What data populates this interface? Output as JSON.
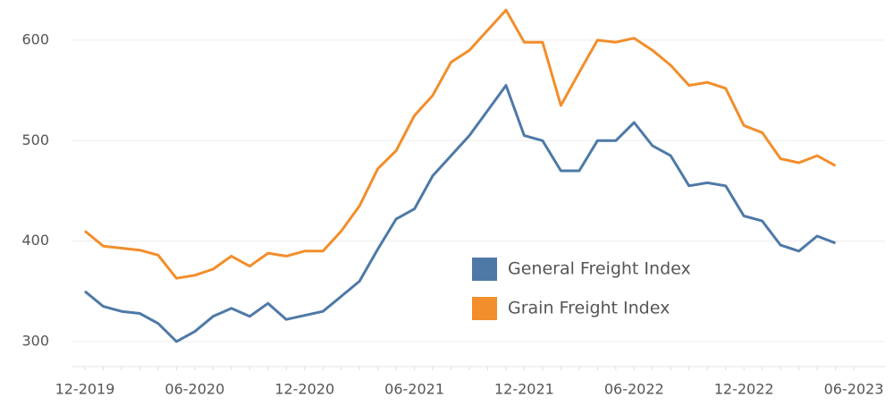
{
  "chart_data": {
    "type": "line",
    "x": [
      "12-2019",
      null,
      null,
      null,
      null,
      null,
      "06-2020",
      null,
      null,
      null,
      null,
      null,
      "12-2020",
      null,
      null,
      null,
      null,
      null,
      "06-2021",
      null,
      null,
      null,
      null,
      null,
      "12-2021",
      null,
      null,
      null,
      null,
      null,
      "06-2022",
      null,
      null,
      null,
      null,
      null,
      "12-2022",
      null,
      null,
      null,
      null,
      null,
      "06-2023"
    ],
    "series": [
      {
        "name": "General Freight Index",
        "color": "#4e79a7",
        "values": [
          350,
          335,
          330,
          328,
          318,
          300,
          310,
          325,
          333,
          325,
          338,
          322,
          326,
          330,
          345,
          360,
          392,
          422,
          432,
          465,
          485,
          505,
          530,
          555,
          505,
          500,
          470,
          470,
          500,
          500,
          518,
          495,
          485,
          455,
          458,
          455,
          425,
          420,
          396,
          390,
          405,
          398,
          null
        ]
      },
      {
        "name": "Grain Freight Index",
        "color": "#f28e2b",
        "values": [
          410,
          395,
          393,
          391,
          386,
          363,
          366,
          372,
          385,
          375,
          388,
          385,
          390,
          390,
          410,
          435,
          472,
          490,
          525,
          545,
          578,
          590,
          610,
          630,
          598,
          598,
          535,
          568,
          600,
          598,
          602,
          590,
          575,
          555,
          558,
          552,
          515,
          508,
          482,
          478,
          485,
          475,
          null
        ]
      }
    ],
    "ylim": [
      275,
      640
    ],
    "yticks": [
      300,
      400,
      500,
      600
    ],
    "grid": true
  }
}
